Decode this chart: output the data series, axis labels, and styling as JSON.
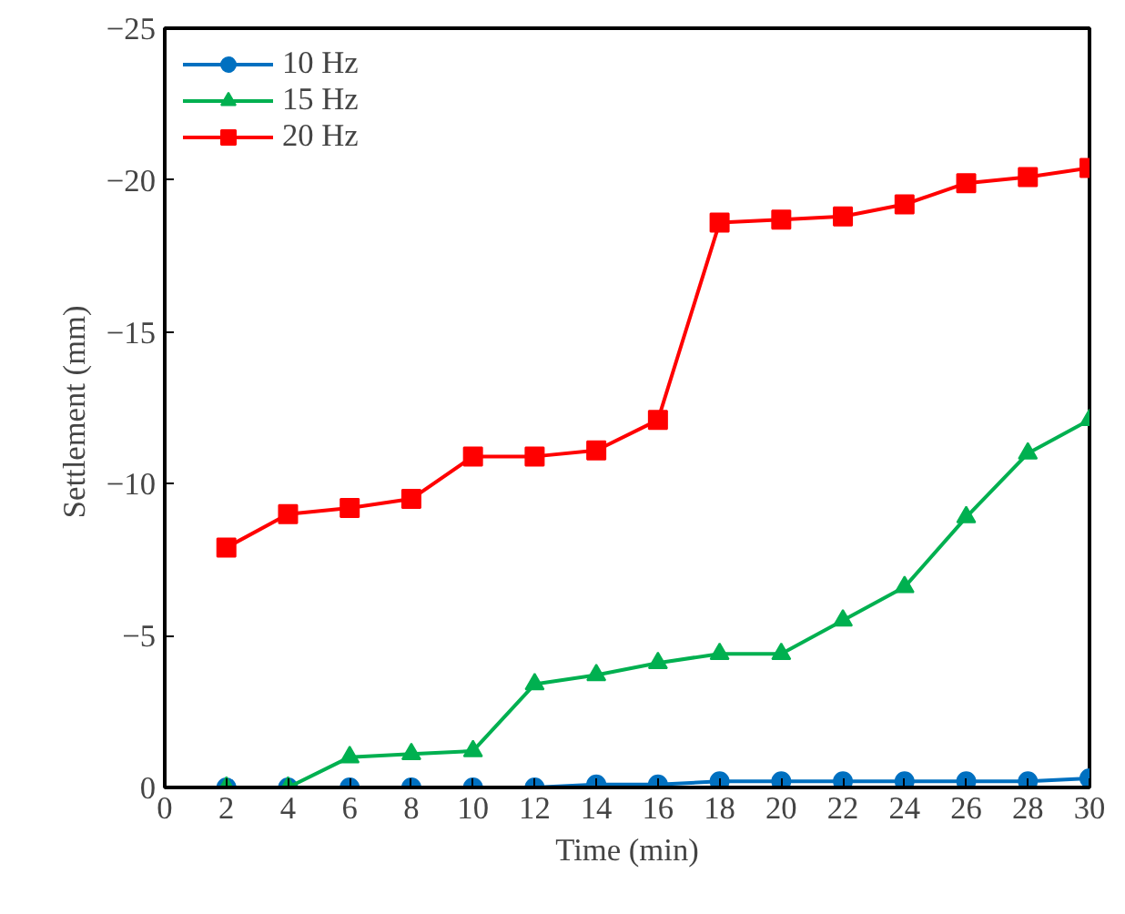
{
  "chart_data": {
    "type": "line",
    "xlabel": "Time (min)",
    "ylabel": "Settlement  (mm)",
    "x": [
      2,
      4,
      6,
      8,
      10,
      12,
      14,
      16,
      18,
      20,
      22,
      24,
      26,
      28,
      30
    ],
    "series": [
      {
        "name": "10 Hz",
        "color": "#0070c0",
        "marker": "circle",
        "values": [
          0,
          0,
          0,
          0,
          0,
          0,
          -0.1,
          -0.1,
          -0.2,
          -0.2,
          -0.2,
          -0.2,
          -0.2,
          -0.2,
          -0.3
        ]
      },
      {
        "name": "15 Hz",
        "color": "#00b050",
        "marker": "triangle",
        "values": [
          0,
          0,
          -1.0,
          -1.1,
          -1.2,
          -3.4,
          -3.7,
          -4.1,
          -4.4,
          -4.4,
          -5.5,
          -6.6,
          -8.9,
          -11.0,
          -12.1
        ]
      },
      {
        "name": "20 Hz",
        "color": "#ff0000",
        "marker": "square",
        "values": [
          -7.9,
          -9.0,
          -9.2,
          -9.5,
          -10.9,
          -10.9,
          -11.1,
          -12.1,
          -18.6,
          -18.7,
          -18.8,
          -19.2,
          -19.9,
          -20.1,
          -20.4
        ]
      }
    ],
    "xlim": [
      0,
      30
    ],
    "xticks": [
      0,
      2,
      4,
      6,
      8,
      10,
      12,
      14,
      16,
      18,
      20,
      22,
      24,
      26,
      28,
      30
    ],
    "ylim": [
      0,
      -25
    ],
    "yticks": [
      0,
      -5,
      -10,
      -15,
      -20,
      -25
    ],
    "grid": false,
    "legend": "top left",
    "line_style": "solid"
  }
}
